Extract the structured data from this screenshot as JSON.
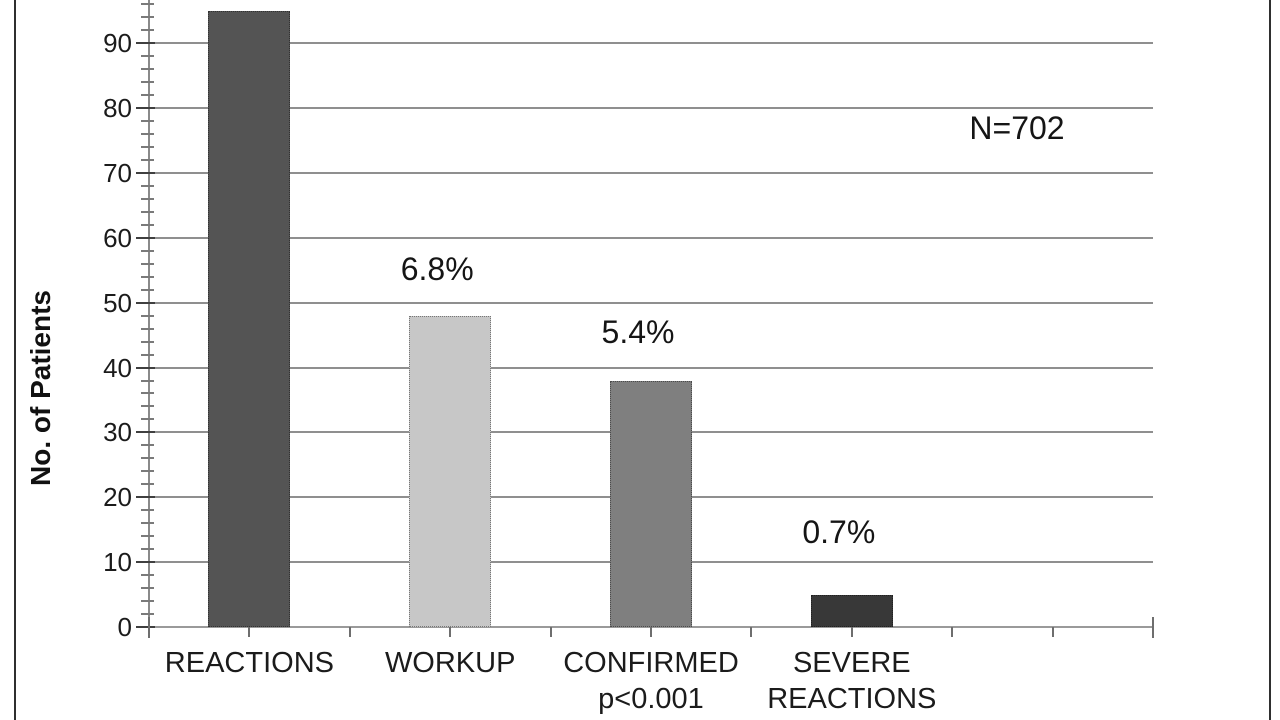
{
  "chart_data": {
    "type": "bar",
    "title": "",
    "ylabel": "No. of Patients",
    "xlabel": "",
    "annotation": "N=702",
    "categories": [
      {
        "lines": [
          "REACTIONS"
        ]
      },
      {
        "lines": [
          "WORKUP"
        ]
      },
      {
        "lines": [
          "CONFIRMED",
          "p<0.001"
        ]
      },
      {
        "lines": [
          "SEVERE",
          "REACTIONS"
        ]
      }
    ],
    "values": [
      95,
      48,
      38,
      5
    ],
    "bar_value_labels": [
      null,
      "6.8%",
      "5.4%",
      "0.7%"
    ],
    "bar_colors": [
      "#545454",
      "#c7c7c7",
      "#7f7f7f",
      "#383838"
    ],
    "y_axis": {
      "tick_labels": [
        "0",
        "10",
        "20",
        "30",
        "40",
        "50",
        "60",
        "70",
        "80",
        "90"
      ],
      "tick_step": 10,
      "minor_tick_step": 2,
      "visible_max": 97
    },
    "x_axis": {
      "category_slots": 5,
      "ticks_between_and_on_categories": true
    },
    "ylim": [
      0,
      100
    ],
    "grid": true,
    "legend_position": null,
    "notes": "top of plot area and first-bar percentage label cropped at image top edge"
  },
  "colors": {
    "background": "#ffffff",
    "gridline": "#8f8f8f",
    "axis": "#9a9a9a",
    "major_tick": "#3f3f3f",
    "minor_tick": "#7a7a7a",
    "text": "#1b1b1b",
    "slide_border": "#2f2f2f"
  }
}
